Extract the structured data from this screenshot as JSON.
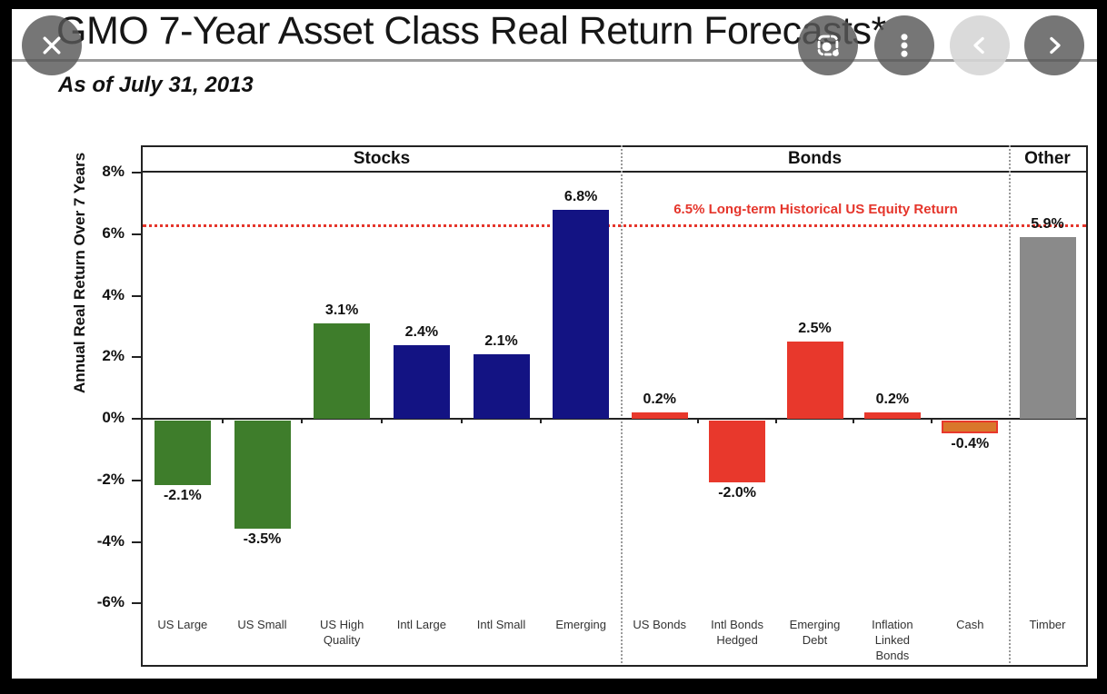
{
  "viewer": {
    "icons": [
      "close-icon",
      "lens-icon",
      "kebab-menu-icon",
      "chevron-left-icon",
      "chevron-right-icon"
    ]
  },
  "slide": {
    "title": "GMO 7-Year Asset Class Real Return Forecasts*",
    "subtitle": "As of July 31, 2013"
  },
  "chart_data": {
    "type": "bar",
    "title": "GMO 7-Year Asset Class Real Return Forecasts*",
    "subtitle": "As of July 31, 2013",
    "ylabel": "Annual Real Return Over 7 Years",
    "ylim": [
      -7.9,
      8
    ],
    "yticks": [
      8,
      6,
      4,
      2,
      0,
      -2,
      -4,
      -6
    ],
    "ytick_suffix": "%",
    "grid": false,
    "legend": "none",
    "sections": [
      {
        "label": "Stocks",
        "categories": [
          "US Large",
          "US Small",
          "US High\nQuality",
          "Intl Large",
          "Intl Small",
          "Emerging"
        ],
        "values": [
          -2.1,
          -3.5,
          3.1,
          2.4,
          2.1,
          6.8
        ],
        "value_labels": [
          "-2.1%",
          "-3.5%",
          "3.1%",
          "2.4%",
          "2.1%",
          "6.8%"
        ],
        "bar_colors": [
          "#3E7D2B",
          "#3E7D2B",
          "#3E7D2B",
          "#131383",
          "#131383",
          "#131383"
        ],
        "bar_borders": [
          null,
          null,
          null,
          null,
          null,
          null
        ]
      },
      {
        "label": "Bonds",
        "categories": [
          "US Bonds",
          "Intl Bonds\nHedged",
          "Emerging\nDebt",
          "Inflation\nLinked\nBonds",
          "Cash"
        ],
        "values": [
          0.2,
          -2.0,
          2.5,
          0.2,
          -0.4
        ],
        "value_labels": [
          "0.2%",
          "-2.0%",
          "2.5%",
          "0.2%",
          "-0.4%"
        ],
        "bar_colors": [
          "#E8382C",
          "#E8382C",
          "#E8382C",
          "#E8382C",
          "#D9772B"
        ],
        "bar_borders": [
          null,
          null,
          null,
          null,
          "#E8382C"
        ]
      },
      {
        "label": "Other",
        "categories": [
          "Timber"
        ],
        "values": [
          5.9
        ],
        "value_labels": [
          "5.9%"
        ],
        "bar_colors": [
          "#8A8A8A"
        ],
        "bar_borders": [
          null
        ]
      }
    ],
    "reference_line": {
      "value": 6.5,
      "label": "6.5% Long-term Historical US Equity Return",
      "color": "#E5352B",
      "style": "dotted"
    },
    "palette": {
      "us_stocks": "#3E7D2B",
      "intl_stocks": "#131383",
      "bonds": "#E8382C",
      "cash": "#D9772B",
      "other": "#8A8A8A"
    }
  }
}
